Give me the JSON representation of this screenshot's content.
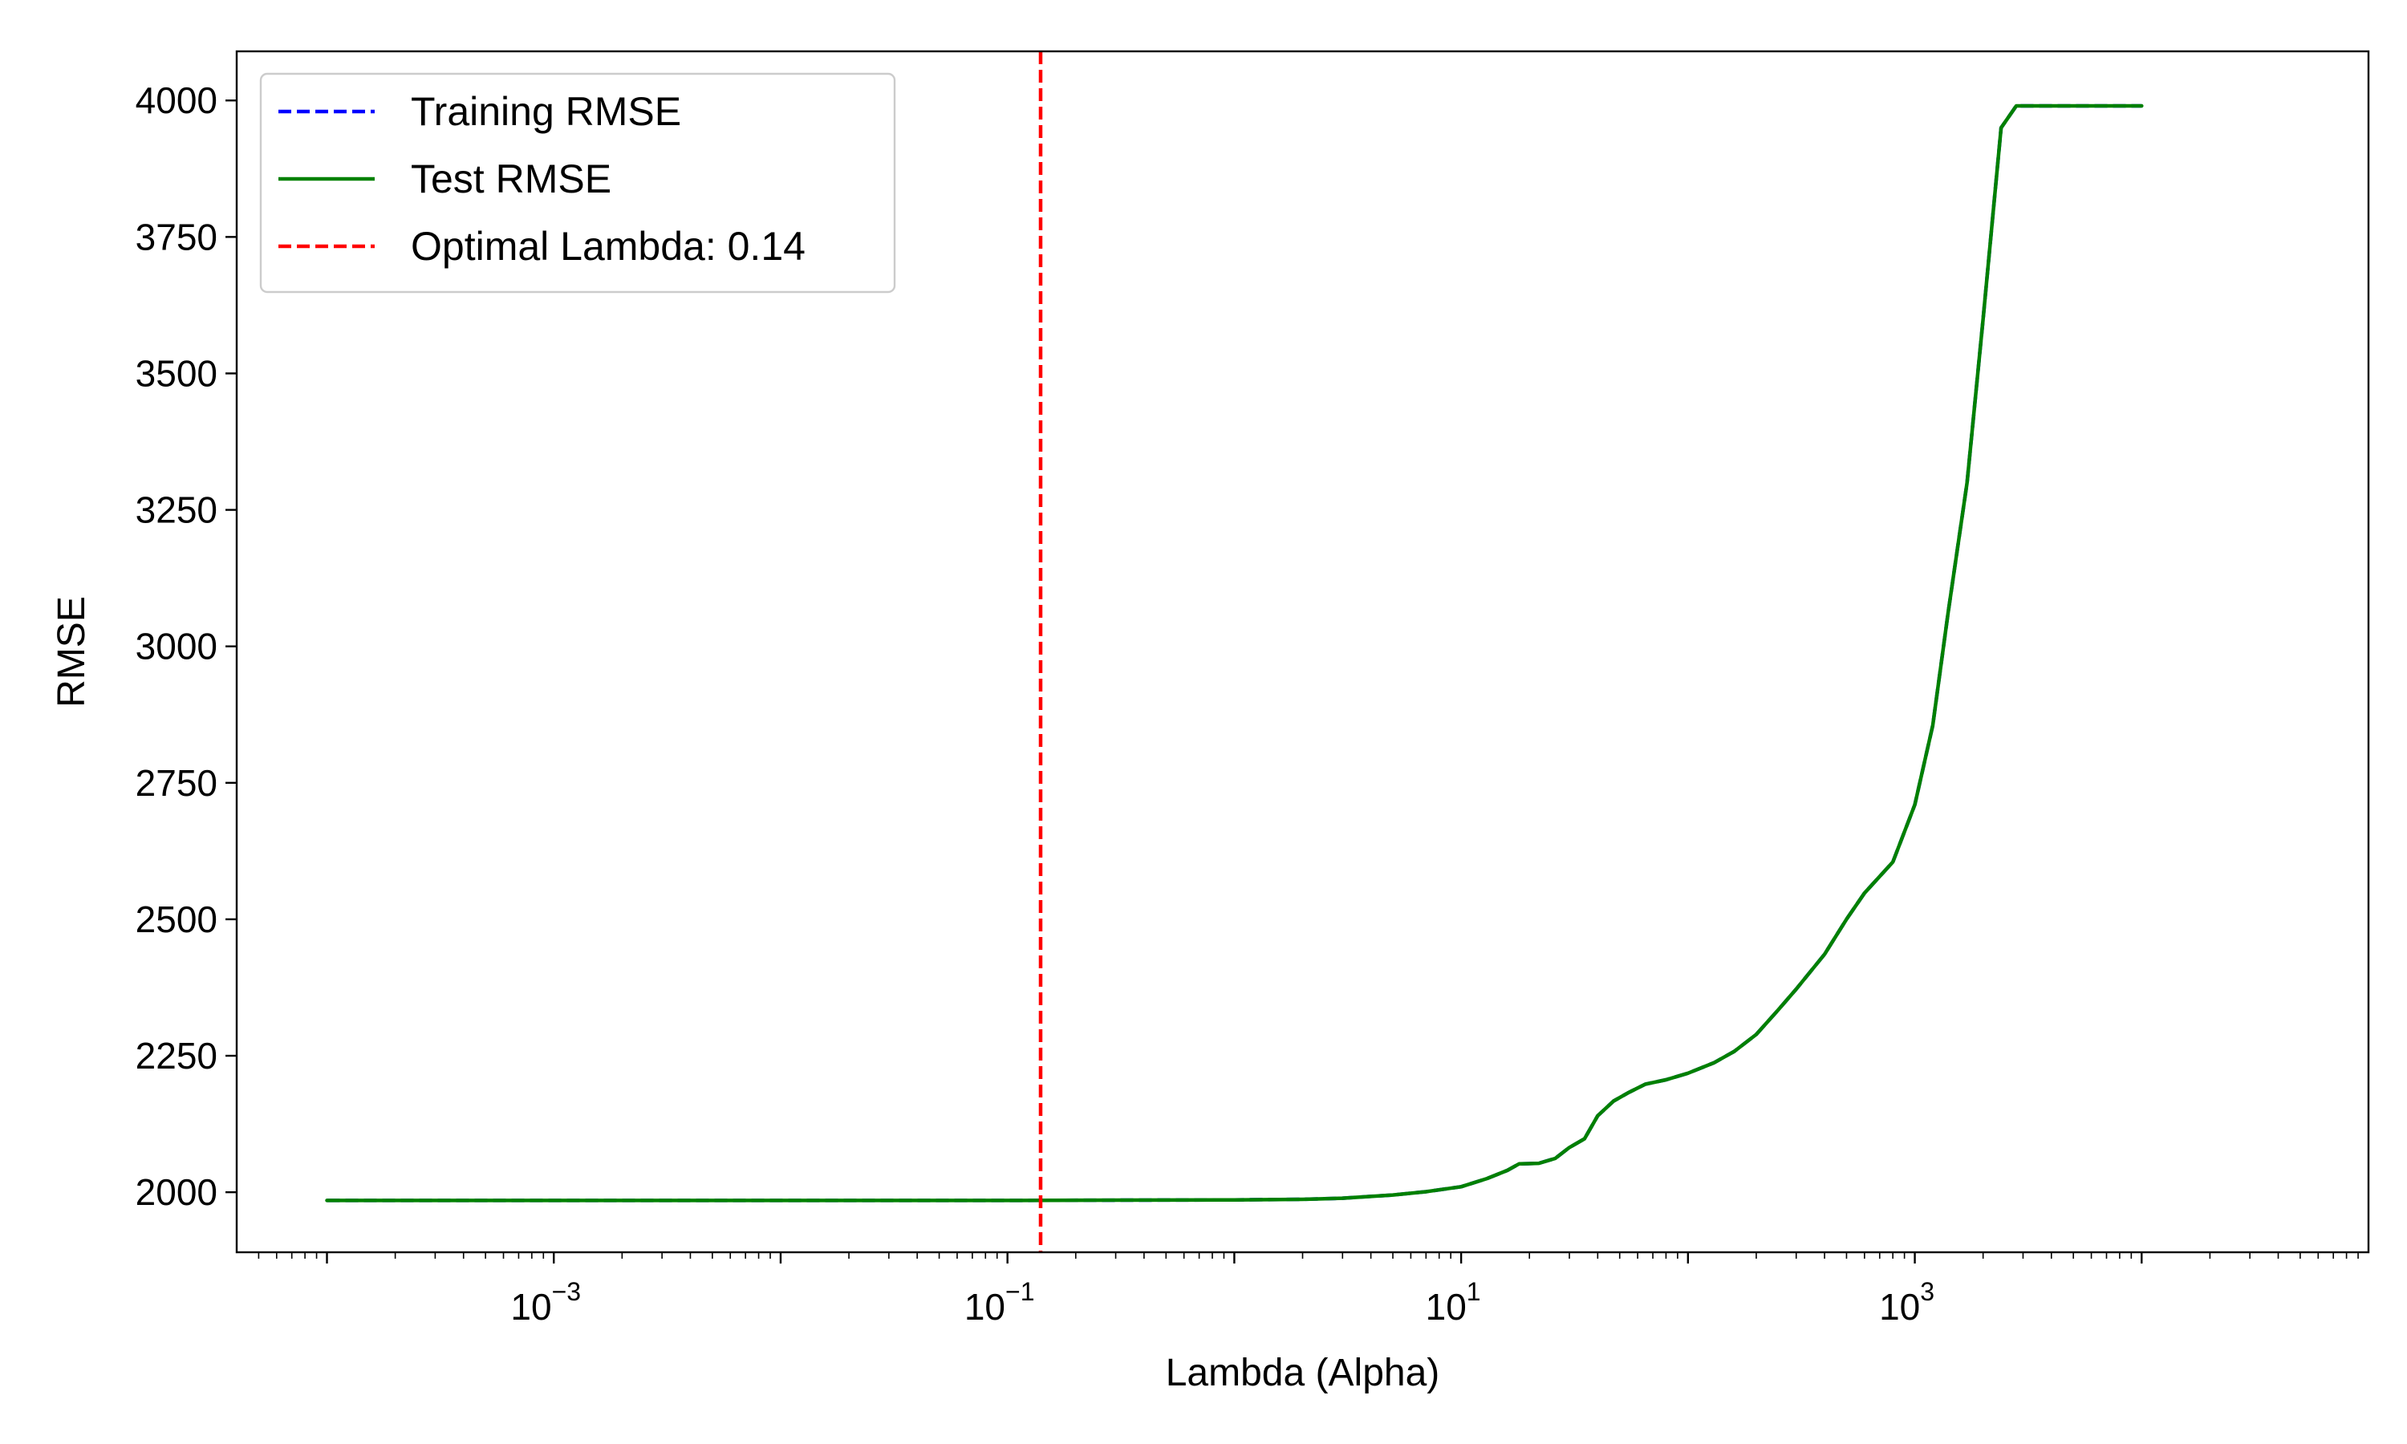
{
  "chart_data": {
    "type": "line",
    "title": "",
    "xlabel": "Lambda (Alpha)",
    "ylabel": "RMSE",
    "xscale": "log",
    "xlim": [
      4e-05,
      100000
    ],
    "ylim": [
      1890,
      4090
    ],
    "grid": false,
    "legend_placement": "top-left",
    "x_ticks": [
      {
        "value": 0.001,
        "base": "10",
        "exp": "−3"
      },
      {
        "value": 0.1,
        "base": "10",
        "exp": "−1"
      },
      {
        "value": 10,
        "base": "10",
        "exp": "1"
      },
      {
        "value": 1000,
        "base": "10",
        "exp": "3"
      }
    ],
    "y_ticks": [
      {
        "value": 2000,
        "label": "2000"
      },
      {
        "value": 2250,
        "label": "2250"
      },
      {
        "value": 2500,
        "label": "2500"
      },
      {
        "value": 2750,
        "label": "2750"
      },
      {
        "value": 3000,
        "label": "3000"
      },
      {
        "value": 3250,
        "label": "3250"
      },
      {
        "value": 3500,
        "label": "3500"
      },
      {
        "value": 3750,
        "label": "3750"
      },
      {
        "value": 4000,
        "label": "4000"
      }
    ],
    "series": [
      {
        "name": "Training RMSE",
        "color": "#0000ff",
        "style": "dashed",
        "x": [
          0.0001,
          0.001,
          0.01,
          0.1,
          1,
          2,
          3,
          5,
          7,
          10,
          13,
          16,
          18,
          22,
          26,
          30,
          35,
          40,
          47,
          55,
          65,
          80,
          100,
          130,
          160,
          200,
          250,
          300,
          400,
          500,
          600,
          800,
          1000,
          1200,
          1400,
          1700,
          2000,
          2400,
          2800,
          3500,
          5000,
          7000,
          10000
        ],
        "y": [
          1985,
          1985,
          1985,
          1985,
          1986,
          1987,
          1989,
          1995,
          2001,
          2010,
          2025,
          2040,
          2052,
          2053,
          2062,
          2082,
          2098,
          2140,
          2167,
          2183,
          2198,
          2206,
          2218,
          2237,
          2258,
          2289,
          2334,
          2372,
          2436,
          2500,
          2548,
          2605,
          2710,
          2855,
          3060,
          3300,
          3600,
          3950,
          3990,
          3990,
          3990,
          3990,
          3990
        ]
      },
      {
        "name": "Test RMSE",
        "color": "#008000",
        "style": "solid",
        "x": [
          0.0001,
          0.001,
          0.01,
          0.1,
          1,
          2,
          3,
          5,
          7,
          10,
          13,
          16,
          18,
          22,
          26,
          30,
          35,
          40,
          47,
          55,
          65,
          80,
          100,
          130,
          160,
          200,
          250,
          300,
          400,
          500,
          600,
          800,
          1000,
          1200,
          1400,
          1700,
          2000,
          2400,
          2800,
          3500,
          5000,
          7000,
          10000
        ],
        "y": [
          1985,
          1985,
          1985,
          1985,
          1986,
          1987,
          1989,
          1995,
          2001,
          2010,
          2025,
          2040,
          2052,
          2053,
          2062,
          2082,
          2098,
          2140,
          2167,
          2183,
          2198,
          2206,
          2218,
          2237,
          2258,
          2289,
          2334,
          2372,
          2436,
          2500,
          2548,
          2605,
          2710,
          2855,
          3060,
          3300,
          3600,
          3950,
          3990,
          3990,
          3990,
          3990,
          3990
        ]
      }
    ],
    "vlines": [
      {
        "name": "Optimal Lambda: 0.14",
        "x": 0.14,
        "color": "#ff0000",
        "style": "dashed"
      }
    ]
  }
}
